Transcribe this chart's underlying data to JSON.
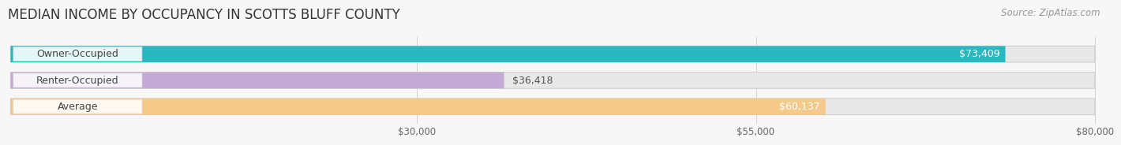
{
  "title": "MEDIAN INCOME BY OCCUPANCY IN SCOTTS BLUFF COUNTY",
  "source": "Source: ZipAtlas.com",
  "categories": [
    "Owner-Occupied",
    "Renter-Occupied",
    "Average"
  ],
  "values": [
    73409,
    36418,
    60137
  ],
  "bar_colors": [
    "#2ab8c0",
    "#c4aad4",
    "#f5c98a"
  ],
  "value_labels": [
    "$73,409",
    "$36,418",
    "$60,137"
  ],
  "value_label_inside": [
    true,
    false,
    true
  ],
  "xlim": [
    0,
    80000
  ],
  "xticks": [
    30000,
    55000,
    80000
  ],
  "xtick_labels": [
    "$30,000",
    "$55,000",
    "$80,000"
  ],
  "background_color": "#f7f7f7",
  "bar_background_color": "#e8e8e8",
  "title_fontsize": 12,
  "source_fontsize": 8.5,
  "bar_height": 0.62,
  "bar_label_fontsize": 9,
  "cat_label_fontsize": 9
}
